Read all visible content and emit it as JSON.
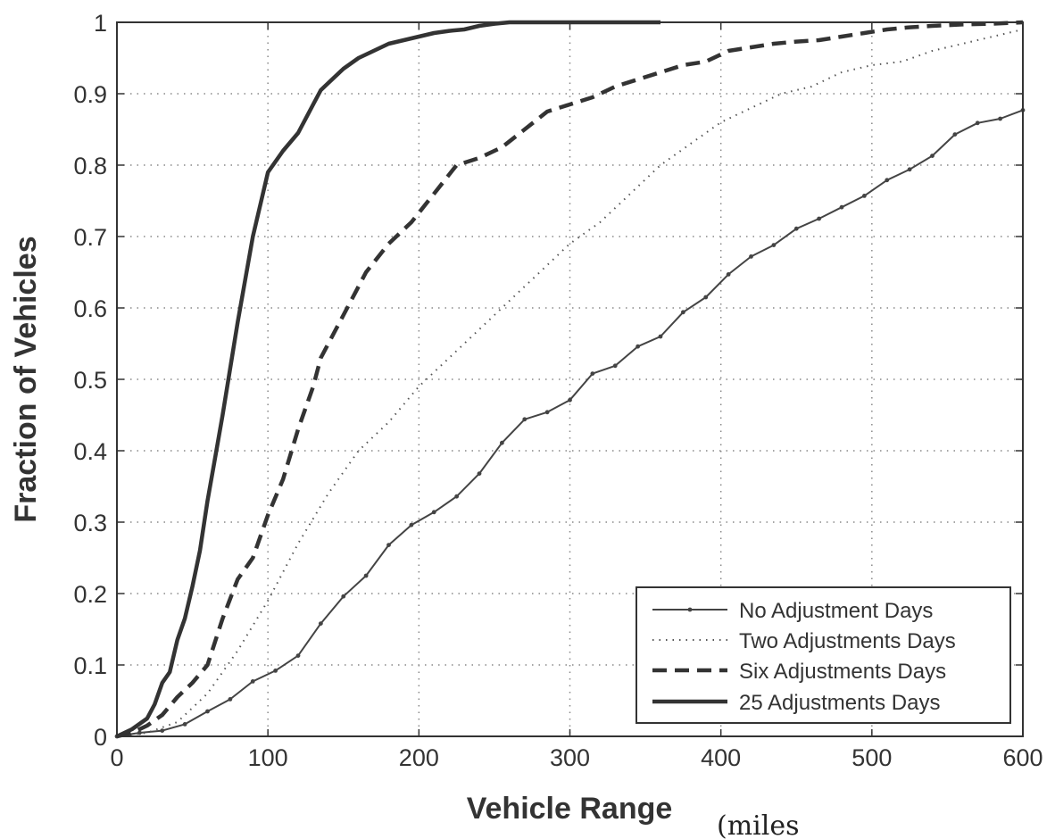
{
  "chart_data": {
    "type": "line",
    "xlabel": "Vehicle Range",
    "xlabel_unit": "(miles",
    "ylabel": "Fraction of Vehicles",
    "xlim": [
      0,
      600
    ],
    "ylim": [
      0,
      1
    ],
    "xticks": [
      "0",
      "100",
      "200",
      "300",
      "400",
      "500",
      "600"
    ],
    "yticks": [
      "0",
      "0.1",
      "0.2",
      "0.3",
      "0.4",
      "0.5",
      "0.6",
      "0.7",
      "0.8",
      "0.9",
      "1"
    ],
    "grid": true,
    "legend_position": "bottom-right",
    "series": [
      {
        "name": "No Adjustment Days",
        "style": "solid-markers",
        "x": [
          0,
          15,
          30,
          45,
          60,
          75,
          90,
          105,
          120,
          135,
          150,
          165,
          180,
          195,
          210,
          225,
          240,
          255,
          270,
          285,
          300,
          315,
          330,
          345,
          360,
          375,
          390,
          405,
          420,
          435,
          450,
          465,
          480,
          495,
          510,
          525,
          540,
          555,
          570,
          585,
          600
        ],
        "y": [
          0.0,
          0.005,
          0.008,
          0.017,
          0.035,
          0.052,
          0.077,
          0.092,
          0.113,
          0.158,
          0.196,
          0.225,
          0.268,
          0.296,
          0.314,
          0.336,
          0.368,
          0.411,
          0.444,
          0.454,
          0.471,
          0.508,
          0.519,
          0.546,
          0.56,
          0.594,
          0.615,
          0.647,
          0.672,
          0.688,
          0.711,
          0.725,
          0.741,
          0.757,
          0.779,
          0.794,
          0.813,
          0.843,
          0.859,
          0.865,
          0.877
        ]
      },
      {
        "name": "Two Adjustments Days",
        "style": "dotted",
        "x": [
          0,
          20,
          40,
          60,
          80,
          100,
          120,
          140,
          160,
          180,
          200,
          220,
          240,
          260,
          280,
          300,
          320,
          340,
          360,
          380,
          400,
          420,
          440,
          460,
          480,
          500,
          520,
          540,
          560,
          580,
          600
        ],
        "y": [
          0.0,
          0.005,
          0.02,
          0.06,
          0.12,
          0.19,
          0.27,
          0.34,
          0.4,
          0.44,
          0.49,
          0.53,
          0.57,
          0.61,
          0.65,
          0.69,
          0.72,
          0.76,
          0.8,
          0.83,
          0.86,
          0.88,
          0.9,
          0.91,
          0.93,
          0.94,
          0.945,
          0.96,
          0.97,
          0.98,
          0.99
        ]
      },
      {
        "name": "Six Adjustments Days",
        "style": "dashed",
        "x": [
          0,
          10,
          20,
          30,
          40,
          50,
          60,
          70,
          80,
          90,
          100,
          110,
          120,
          130,
          135,
          150,
          165,
          180,
          195,
          210,
          225,
          240,
          255,
          270,
          285,
          300,
          315,
          330,
          345,
          360,
          375,
          390,
          405,
          420,
          435,
          450,
          465,
          480,
          495,
          510,
          525,
          540,
          560,
          580,
          600
        ],
        "y": [
          0.0,
          0.005,
          0.015,
          0.03,
          0.055,
          0.075,
          0.1,
          0.165,
          0.22,
          0.25,
          0.31,
          0.36,
          0.43,
          0.49,
          0.53,
          0.59,
          0.65,
          0.69,
          0.72,
          0.76,
          0.8,
          0.81,
          0.825,
          0.85,
          0.875,
          0.885,
          0.895,
          0.91,
          0.92,
          0.93,
          0.94,
          0.945,
          0.96,
          0.965,
          0.97,
          0.973,
          0.975,
          0.98,
          0.985,
          0.99,
          0.993,
          0.995,
          0.997,
          0.998,
          1.0
        ]
      },
      {
        "name": "25 Adjustments Days",
        "style": "solid-thick",
        "x": [
          0,
          10,
          20,
          25,
          30,
          35,
          40,
          45,
          50,
          55,
          60,
          65,
          70,
          80,
          90,
          100,
          110,
          120,
          130,
          135,
          140,
          150,
          160,
          170,
          180,
          190,
          200,
          210,
          220,
          230,
          240,
          250,
          260,
          280,
          300,
          320,
          350,
          360
        ],
        "y": [
          0.0,
          0.01,
          0.025,
          0.045,
          0.075,
          0.09,
          0.135,
          0.165,
          0.21,
          0.26,
          0.33,
          0.39,
          0.45,
          0.58,
          0.7,
          0.79,
          0.82,
          0.845,
          0.885,
          0.905,
          0.915,
          0.935,
          0.95,
          0.96,
          0.97,
          0.975,
          0.98,
          0.985,
          0.988,
          0.99,
          0.995,
          0.998,
          1.0,
          1.0,
          1.0,
          1.0,
          1.0,
          1.0
        ]
      }
    ]
  }
}
